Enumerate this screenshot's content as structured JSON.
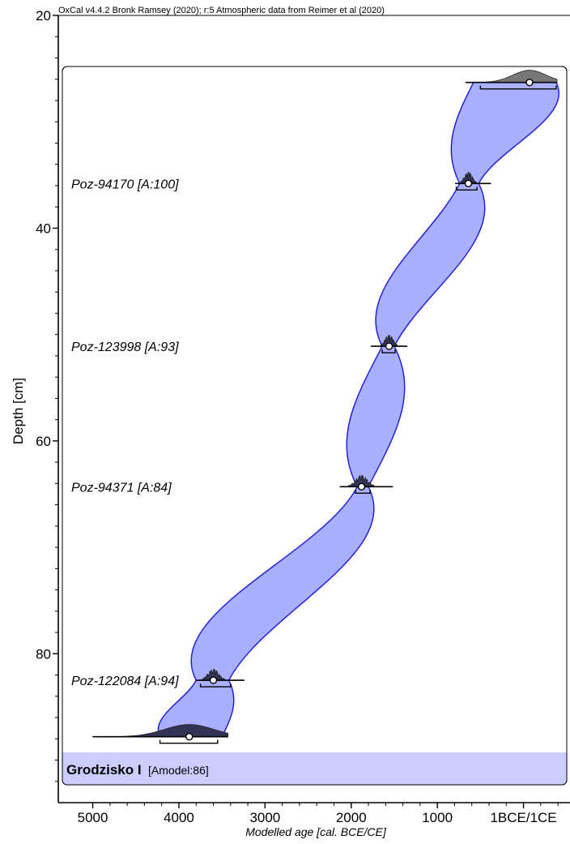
{
  "header": "OxCal v4.4.2 Bronk Ramsey (2020); r:5 Atmospheric data from Reimer et al (2020)",
  "chart_data": {
    "type": "area",
    "title": "",
    "xlabel": "Modelled age [cal. BCE/CE]",
    "ylabel": "Depth [cm]",
    "xlim": [
      5400,
      -540
    ],
    "ylim": [
      20,
      94
    ],
    "y_inverted": true,
    "x_ticks": [
      {
        "value": 5000,
        "label": "5000"
      },
      {
        "value": 4000,
        "label": "4000"
      },
      {
        "value": 3000,
        "label": "3000"
      },
      {
        "value": 2000,
        "label": "2000"
      },
      {
        "value": 1000,
        "label": "1000"
      },
      {
        "value": 0,
        "label": "1BCE/1CE"
      }
    ],
    "y_ticks": [
      {
        "value": 20,
        "label": "20"
      },
      {
        "value": 40,
        "label": "40"
      },
      {
        "value": 60,
        "label": "60"
      },
      {
        "value": 80,
        "label": "80"
      }
    ],
    "group": {
      "name": "Grodzisko I",
      "model": "[Amodel:86]"
    },
    "envelope": {
      "fill": "#aab0ff",
      "stroke": "#2222dd",
      "left_edge": [
        {
          "depth": 26.3,
          "age": 580
        },
        {
          "depth": 35.8,
          "age": 740
        },
        {
          "depth": 51.1,
          "age": 1640
        },
        {
          "depth": 64.3,
          "age": 1930
        },
        {
          "depth": 82.5,
          "age": 3800
        },
        {
          "depth": 87.8,
          "age": 4220
        }
      ],
      "right_edge": [
        {
          "depth": 26.3,
          "age": -380
        },
        {
          "depth": 35.8,
          "age": 520
        },
        {
          "depth": 51.1,
          "age": 1500
        },
        {
          "depth": 64.3,
          "age": 1800
        },
        {
          "depth": 82.5,
          "age": 3420
        },
        {
          "depth": 87.8,
          "age": 3500
        }
      ]
    },
    "boundaries": [
      {
        "depth": 26.3,
        "mean": -70,
        "line": [
          670,
          -390
        ],
        "range": [
          500,
          -380
        ]
      },
      {
        "depth": 87.8,
        "mean": 3880,
        "line": [
          5000,
          3430
        ],
        "range": [
          4220,
          3550
        ]
      }
    ],
    "dates": [
      {
        "label": "Poz-94170 [A:100]",
        "depth": 35.8,
        "mean": 640,
        "line": [
          790,
          380
        ],
        "range": [
          780,
          540
        ]
      },
      {
        "label": "Poz-123998 [A:93]",
        "depth": 51.1,
        "mean": 1560,
        "line": [
          1770,
          1350
        ],
        "range": [
          1640,
          1490
        ]
      },
      {
        "label": "Poz-94371 [A:84]",
        "depth": 64.3,
        "mean": 1880,
        "line": [
          2130,
          1520
        ],
        "range": [
          1950,
          1780
        ]
      },
      {
        "label": "Poz-122084 [A:94]",
        "depth": 82.5,
        "mean": 3600,
        "line": [
          3800,
          3240
        ],
        "range": [
          3750,
          3400
        ]
      }
    ]
  }
}
